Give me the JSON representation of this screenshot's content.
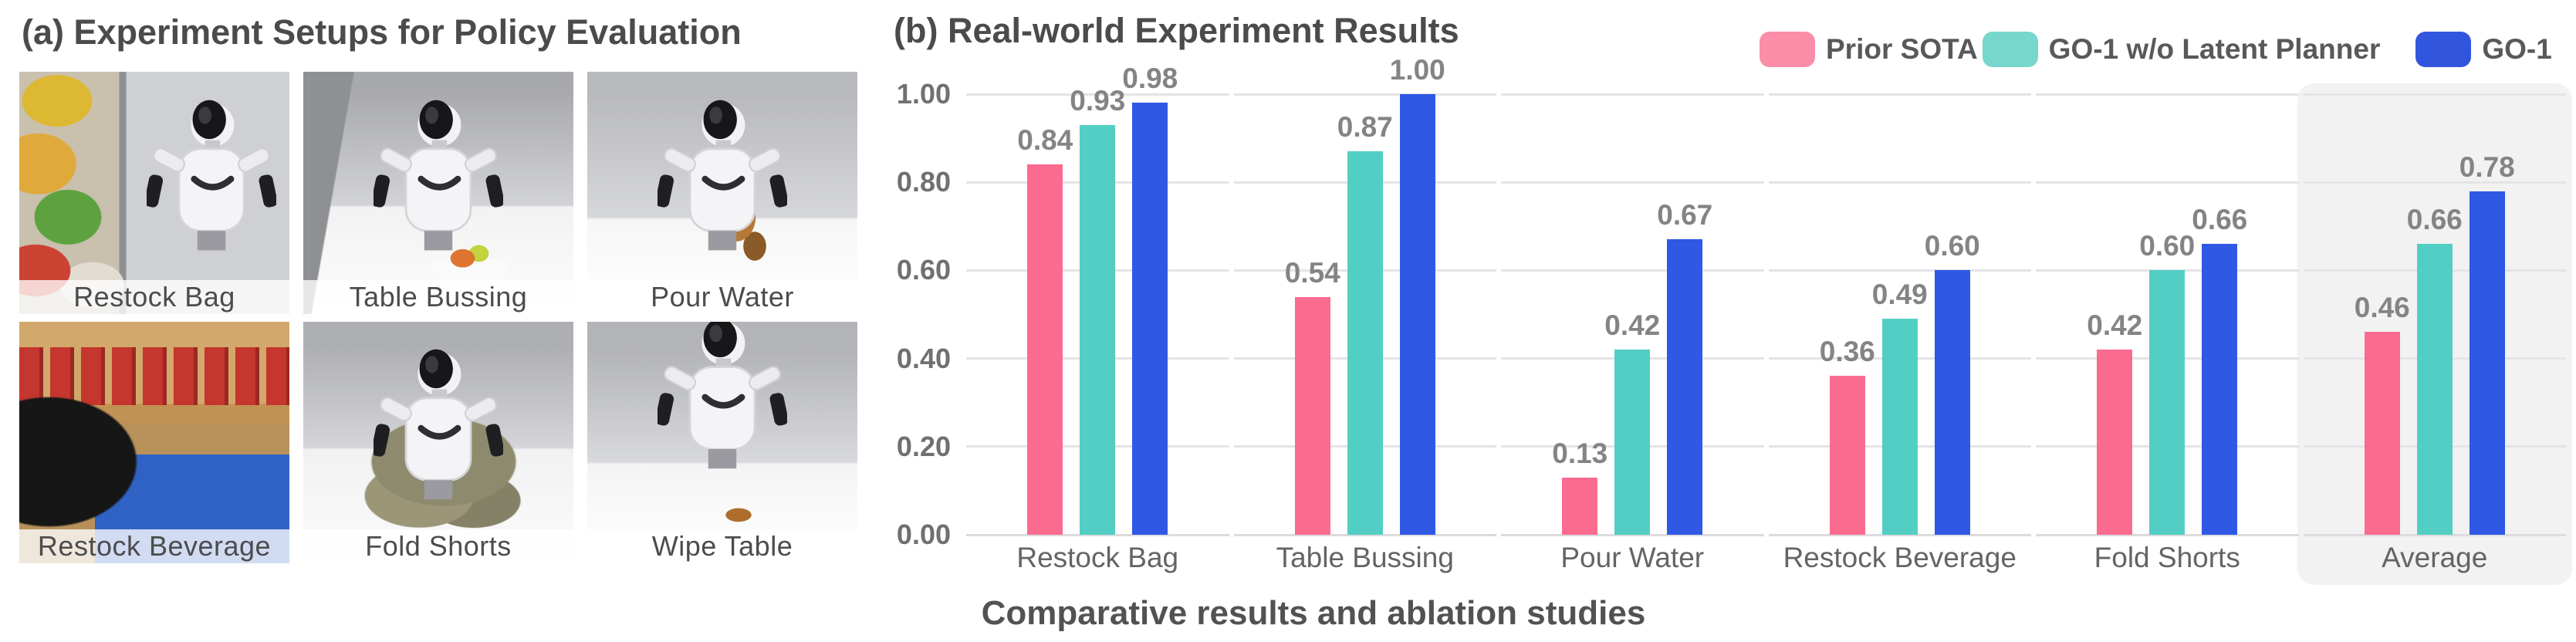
{
  "figure": {
    "section_a": {
      "title": "(a) Experiment Setups for Policy Evaluation",
      "setups": [
        {
          "label": "Restock Bag"
        },
        {
          "label": "Table Bussing"
        },
        {
          "label": "Pour Water"
        },
        {
          "label": "Restock Beverage"
        },
        {
          "label": "Fold Shorts"
        },
        {
          "label": "Wipe Table"
        }
      ]
    },
    "section_b": {
      "title": "(b) Real-world Experiment Results",
      "caption": "Comparative results and ablation studies",
      "legend": [
        {
          "label": "Prior SOTA",
          "color": "#FA8DA7"
        },
        {
          "label": "GO-1 w/o Latent Planner",
          "color": "#77D7CD"
        },
        {
          "label": "GO-1",
          "color": "#3156DD"
        }
      ]
    }
  },
  "chart_data": {
    "type": "bar",
    "categories": [
      "Restock Bag",
      "Table Bussing",
      "Pour Water",
      "Restock Beverage",
      "Fold Shorts",
      "Average"
    ],
    "series": [
      {
        "name": "Prior SOTA",
        "color": "#FB6B8F",
        "values": [
          0.84,
          0.54,
          0.13,
          0.36,
          0.42,
          0.46
        ]
      },
      {
        "name": "GO-1 w/o Latent Planner",
        "color": "#53CEC4",
        "values": [
          0.93,
          0.87,
          0.42,
          0.49,
          0.6,
          0.66
        ]
      },
      {
        "name": "GO-1",
        "color": "#2F58E4",
        "values": [
          0.98,
          1.0,
          0.67,
          0.6,
          0.66,
          0.78
        ]
      }
    ],
    "ylim": [
      0,
      1
    ],
    "yticks": [
      0.0,
      0.2,
      0.4,
      0.6,
      0.8,
      1.0
    ],
    "ytick_labels": [
      "0.00",
      "0.20",
      "0.40",
      "0.60",
      "0.80",
      "1.00"
    ],
    "grid": "horizontal",
    "value_labels": true,
    "legend_position": "top-right",
    "highlight_category": "Average"
  }
}
